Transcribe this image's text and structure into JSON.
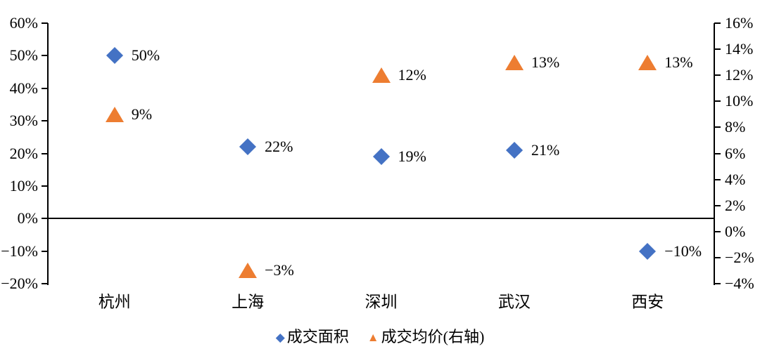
{
  "chart_data": {
    "type": "scatter",
    "title": "",
    "categories": [
      "杭州",
      "上海",
      "深圳",
      "武汉",
      "西安"
    ],
    "series": [
      {
        "name": "成交面积",
        "marker": "diamond",
        "color": "#4472C4",
        "axis": "left",
        "values": [
          50,
          22,
          19,
          21,
          -10
        ],
        "labels": [
          "50%",
          "22%",
          "19%",
          "21%",
          "−10%"
        ]
      },
      {
        "name": "成交均价(右轴)",
        "marker": "triangle",
        "color": "#ED7D31",
        "axis": "right",
        "values": [
          9,
          -3,
          12,
          13,
          13
        ],
        "labels": [
          "9%",
          "−3%",
          "12%",
          "13%",
          "13%"
        ]
      }
    ],
    "left_axis": {
      "min": -20,
      "max": 60,
      "step": 10,
      "tick_labels": [
        "60%",
        "50%",
        "40%",
        "30%",
        "20%",
        "10%",
        "0%",
        "−10%",
        "−20%"
      ]
    },
    "right_axis": {
      "min": -4,
      "max": 16,
      "step": 2,
      "tick_labels": [
        "16%",
        "14%",
        "12%",
        "10%",
        "8%",
        "6%",
        "4%",
        "2%",
        "0%",
        "−2%",
        "−4%"
      ]
    },
    "legend": [
      {
        "label": "成交面积",
        "marker": "diamond",
        "color": "#4472C4"
      },
      {
        "label": "成交均价(右轴)",
        "marker": "triangle",
        "color": "#ED7D31"
      }
    ],
    "grid": false,
    "legend_position": "bottom"
  },
  "colors": {
    "series_area": "#4472C4",
    "series_price": "#ED7D31",
    "axis": "#000000",
    "background": "#FFFFFF"
  }
}
